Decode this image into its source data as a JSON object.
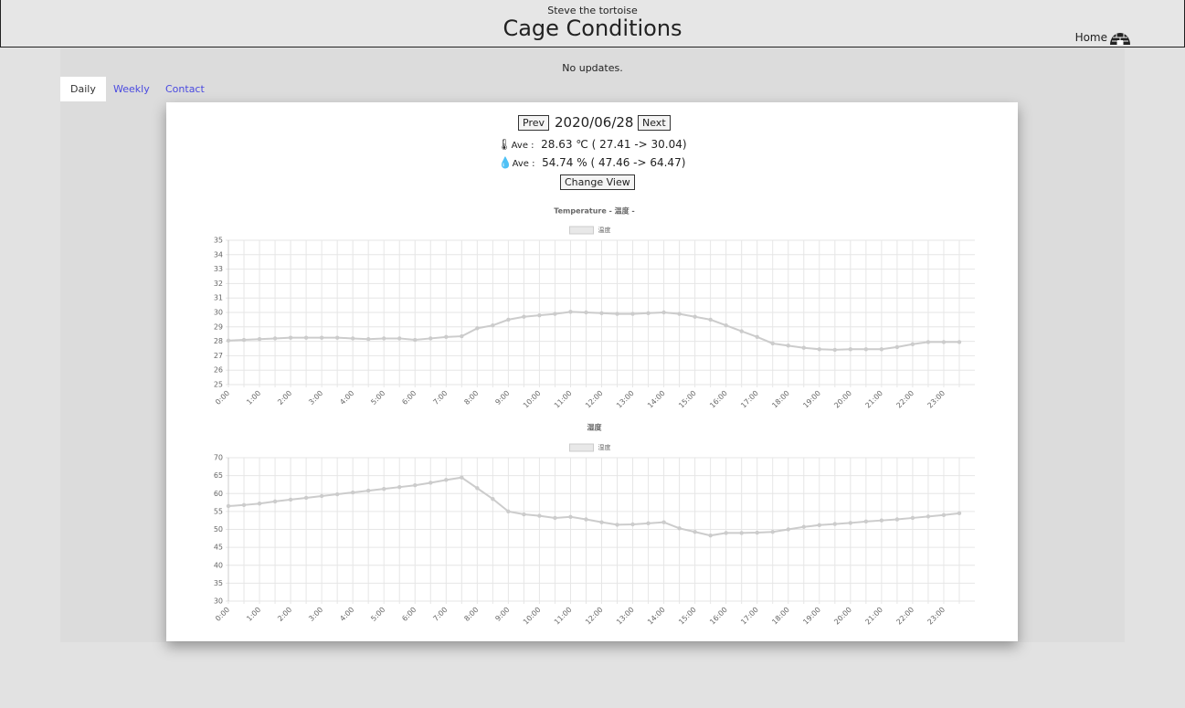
{
  "header": {
    "subtitle": "Steve the tortoise",
    "title": "Cage Conditions",
    "home": "Home"
  },
  "status": "No updates.",
  "tabs": [
    "Daily",
    "Weekly",
    "Contact"
  ],
  "nav": {
    "prev": "Prev",
    "date": "2020/06/28",
    "next": "Next"
  },
  "stats": {
    "temperature": {
      "label": "Ave :",
      "average": "28.63 ℃",
      "range": "( 27.41 -> 30.04)"
    },
    "humidity": {
      "label": "Ave :",
      "average": "54.74 %",
      "range": "( 47.46 -> 64.47)"
    },
    "button": "Change View"
  },
  "chart_data": [
    {
      "type": "line",
      "title": "Temperature  - 温度 -",
      "categories": [
        "0:00",
        null,
        "1:00",
        null,
        "2:00",
        null,
        "3:00",
        null,
        "4:00",
        null,
        "5:00",
        null,
        "6:00",
        null,
        "7:00",
        null,
        "8:00",
        null,
        "9:00",
        null,
        "10:00",
        null,
        "11:00",
        null,
        "12:00",
        null,
        "13:00",
        null,
        "14:00",
        null,
        "15:00",
        null,
        "16:00",
        null,
        "17:00",
        null,
        "18:00",
        null,
        "19:00",
        null,
        "20:00",
        null,
        "21:00",
        null,
        "22:00",
        null,
        "23:00",
        null
      ],
      "series": [
        {
          "name": "温度",
          "color": "#cccccc",
          "values": [
            28.05,
            28.1,
            28.15,
            28.2,
            28.25,
            28.25,
            28.25,
            28.25,
            28.2,
            28.15,
            28.2,
            28.2,
            28.1,
            28.2,
            28.3,
            28.35,
            28.9,
            29.1,
            29.5,
            29.7,
            29.8,
            29.9,
            30.04,
            30.0,
            29.95,
            29.9,
            29.9,
            29.95,
            30.0,
            29.9,
            29.7,
            29.5,
            29.1,
            28.7,
            28.3,
            27.85,
            27.7,
            27.55,
            27.45,
            27.41,
            27.45,
            27.45,
            27.45,
            27.6,
            27.8,
            27.95,
            27.95,
            27.95
          ]
        }
      ],
      "ylim": [
        25,
        35
      ],
      "yticks": [
        25,
        26,
        27,
        28,
        29,
        30,
        31,
        32,
        33,
        34,
        35
      ],
      "grid": true,
      "legend": "top"
    },
    {
      "type": "line",
      "title": "湿度",
      "categories": [
        "0:00",
        null,
        "1:00",
        null,
        "2:00",
        null,
        "3:00",
        null,
        "4:00",
        null,
        "5:00",
        null,
        "6:00",
        null,
        "7:00",
        null,
        "8:00",
        null,
        "9:00",
        null,
        "10:00",
        null,
        "11:00",
        null,
        "12:00",
        null,
        "13:00",
        null,
        "14:00",
        null,
        "15:00",
        null,
        "16:00",
        null,
        "17:00",
        null,
        "18:00",
        null,
        "19:00",
        null,
        "20:00",
        null,
        "21:00",
        null,
        "22:00",
        null,
        "23:00",
        null
      ],
      "series": [
        {
          "name": "湿度",
          "color": "#cccccc",
          "values": [
            56.5,
            56.8,
            57.2,
            57.8,
            58.3,
            58.8,
            59.3,
            59.8,
            60.3,
            60.8,
            61.3,
            61.8,
            62.3,
            63.0,
            63.8,
            64.47,
            61.5,
            58.5,
            55.0,
            54.2,
            53.8,
            53.2,
            53.5,
            52.8,
            52.0,
            51.3,
            51.4,
            51.7,
            52.0,
            50.3,
            49.3,
            48.3,
            49.0,
            49.0,
            49.1,
            49.3,
            50.0,
            50.7,
            51.2,
            51.5,
            51.8,
            52.2,
            52.5,
            52.8,
            53.2,
            53.6,
            54.0,
            54.5
          ]
        }
      ],
      "ylim": [
        30,
        70
      ],
      "yticks": [
        30,
        35,
        40,
        45,
        50,
        55,
        60,
        65,
        70
      ],
      "grid": true,
      "legend": "top"
    }
  ]
}
